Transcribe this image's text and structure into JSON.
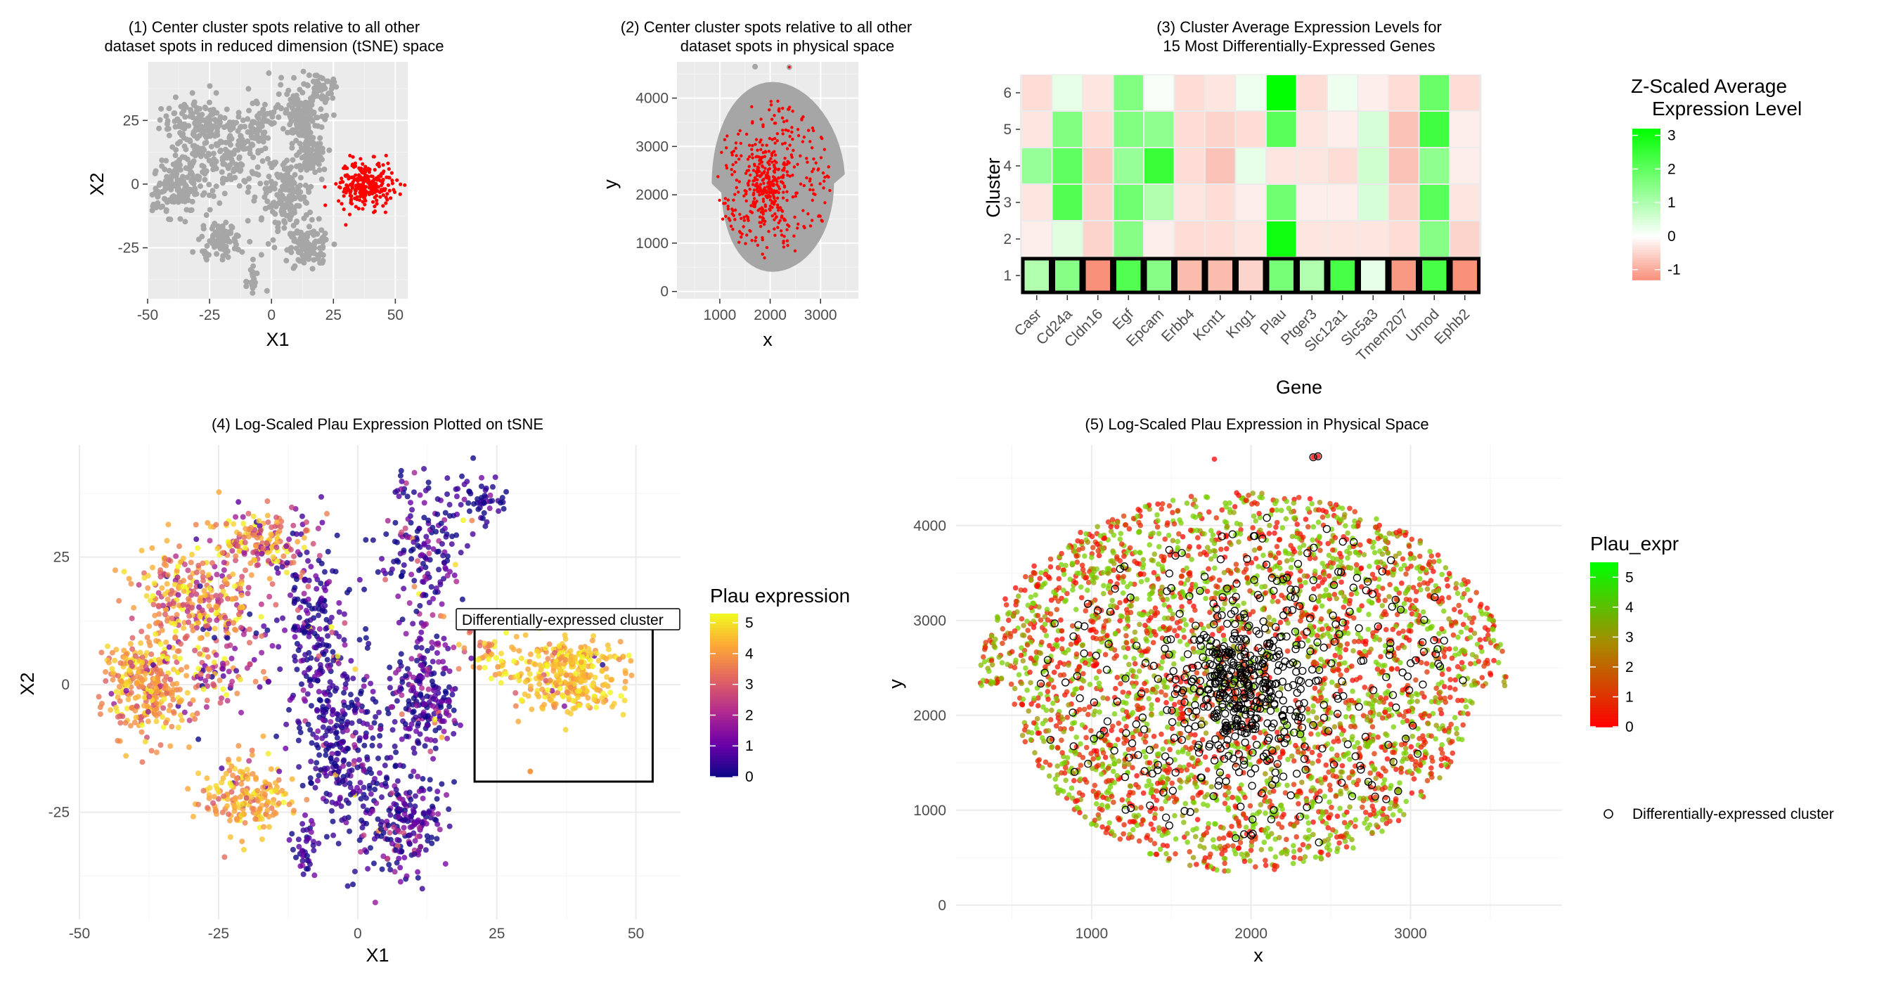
{
  "chart_data": [
    {
      "id": "p1",
      "type": "scatter",
      "title_lines": [
        "(1) Center cluster spots relative to all other",
        "dataset spots in reduced dimension (tSNE) space"
      ],
      "xlabel": "X1",
      "ylabel": "X2",
      "xlim": [
        -50,
        55
      ],
      "ylim": [
        -45,
        48
      ],
      "xticks": [
        -50,
        -25,
        0,
        25,
        50
      ],
      "yticks": [
        -25,
        0,
        25
      ],
      "background": "#ebebeb",
      "grid": true,
      "series": [
        {
          "name": "other spots",
          "color": "#a6a6a6"
        },
        {
          "name": "center cluster spots",
          "color": "#ff0000"
        }
      ]
    },
    {
      "id": "p2",
      "type": "scatter",
      "title_lines": [
        "(2) Center cluster spots relative to all other",
        "dataset spots in physical space"
      ],
      "xlabel": "x",
      "ylabel": "y",
      "xlim": [
        150,
        3750
      ],
      "ylim": [
        -150,
        4750
      ],
      "xticks": [
        1000,
        2000,
        3000
      ],
      "yticks": [
        0,
        1000,
        2000,
        3000,
        4000
      ],
      "background": "#ebebeb",
      "grid": true,
      "series": [
        {
          "name": "other spots",
          "color": "#a6a6a6"
        },
        {
          "name": "center cluster spots",
          "color": "#ff0000"
        }
      ]
    },
    {
      "id": "p3",
      "type": "heatmap",
      "title_lines": [
        "(3) Cluster Average Expression Levels for",
        "15 Most Differentially-Expressed Genes"
      ],
      "xlabel": "Gene",
      "ylabel": "Cluster",
      "genes": [
        "Casr",
        "Cd24a",
        "Cldn16",
        "Egf",
        "Epcam",
        "Erbb4",
        "Kcnt1",
        "Kng1",
        "Plau",
        "Ptger3",
        "Slc12a1",
        "Slc5a3",
        "Tmem207",
        "Umod",
        "Ephb2"
      ],
      "clusters": [
        "1",
        "2",
        "3",
        "4",
        "5",
        "6"
      ],
      "highlight_cluster": "1",
      "values": [
        [
          1.0,
          1.5,
          -1.3,
          2.2,
          1.5,
          -0.8,
          -0.8,
          -0.5,
          1.7,
          1.0,
          2.3,
          0.3,
          -1.2,
          2.3,
          -1.5
        ],
        [
          -0.2,
          0.4,
          -0.5,
          1.5,
          -0.2,
          -0.4,
          -0.4,
          -0.3,
          3.0,
          -0.3,
          -0.3,
          -0.3,
          -0.4,
          1.5,
          -0.5
        ],
        [
          -0.3,
          2.2,
          -0.5,
          1.8,
          1.0,
          -0.3,
          -0.4,
          -0.2,
          1.8,
          -0.2,
          -0.2,
          0.5,
          -0.5,
          2.1,
          -0.3
        ],
        [
          1.3,
          2.0,
          -0.6,
          1.3,
          2.5,
          -0.4,
          -0.7,
          0.3,
          -0.3,
          -0.3,
          -0.4,
          0.6,
          -0.7,
          1.4,
          -0.2
        ],
        [
          -0.3,
          1.6,
          -0.4,
          1.6,
          1.4,
          -0.4,
          -0.5,
          -0.4,
          2.1,
          -0.3,
          -0.2,
          0.5,
          -0.7,
          2.4,
          -0.2
        ],
        [
          -0.4,
          0.3,
          -0.3,
          1.6,
          0.1,
          -0.4,
          -0.3,
          0.2,
          3.2,
          -0.4,
          0.2,
          -0.2,
          -0.4,
          1.9,
          -0.4
        ]
      ],
      "legend": {
        "title_lines": [
          "Z-Scaled Average",
          "Expression Level"
        ],
        "range": [
          -1.3,
          3.2
        ],
        "ticks": [
          -1,
          0,
          1,
          2,
          3
        ]
      },
      "colors": {
        "low": "#f8907a",
        "mid": "#ffffff",
        "high": "#00ff00"
      }
    },
    {
      "id": "p4",
      "type": "scatter",
      "title_lines": [
        "(4) Log-Scaled Plau Expression Plotted on tSNE"
      ],
      "xlabel": "X1",
      "ylabel": "X2",
      "xlim": [
        -50,
        58
      ],
      "ylim": [
        -46,
        47
      ],
      "xticks": [
        -50,
        -25,
        0,
        25,
        50
      ],
      "yticks": [
        -25,
        0,
        25
      ],
      "background": "#ffffff",
      "grid": true,
      "color_variable": "Plau expression",
      "legend": {
        "title": "Plau expression",
        "range": [
          0,
          5.3
        ],
        "ticks": [
          0,
          1,
          2,
          3,
          4,
          5
        ]
      },
      "annotation": {
        "label": "Differentially-expressed cluster",
        "x_range": [
          21,
          53
        ],
        "y_range": [
          -19,
          12
        ]
      },
      "palette": [
        "#0d0887",
        "#6a00a8",
        "#b12a90",
        "#e16462",
        "#fca636",
        "#f0f921"
      ]
    },
    {
      "id": "p5",
      "type": "scatter",
      "title_lines": [
        "(5) Log-Scaled Plau Expression in Physical Space"
      ],
      "xlabel": "x",
      "ylabel": "y",
      "xlim": [
        150,
        3950
      ],
      "ylim": [
        -150,
        4850
      ],
      "xticks": [
        1000,
        2000,
        3000
      ],
      "yticks": [
        0,
        1000,
        2000,
        3000,
        4000
      ],
      "background": "#ffffff",
      "grid": true,
      "legend": {
        "title": "Plau_expr",
        "range": [
          0,
          5.5
        ],
        "ticks": [
          0,
          1,
          2,
          3,
          4,
          5
        ]
      },
      "shape_legend": {
        "label": "Differentially-expressed cluster"
      },
      "colors": {
        "low": "#ff0000",
        "high": "#00ff00"
      }
    }
  ]
}
